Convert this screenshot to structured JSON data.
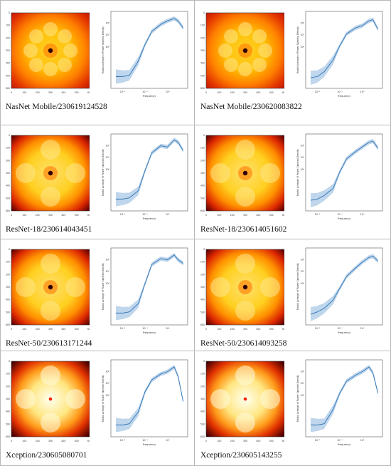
{
  "figure": {
    "psd_ylabel": "Radial Average of Power Spectral Density",
    "psd_xlabel": "Frequency",
    "heatmap_ticks": [
      "0",
      "100",
      "200",
      "300",
      "400",
      "500",
      "600"
    ],
    "psd_xticks": [
      "10⁻²",
      "10⁻¹",
      "10⁰"
    ],
    "psd_yticks": [
      "10⁸",
      "10⁷",
      "10⁶"
    ],
    "colors": {
      "line": "#2f74b5",
      "band": "#a9c8e6",
      "hot_outer": "#000000",
      "hot_mid": "#ff5500",
      "hot_core": "#ffffc8"
    },
    "panels": [
      {
        "caption": "NasNet Mobile/230619124528",
        "style": "nasnet"
      },
      {
        "caption": "NasNet Mobile/230620083822",
        "style": "nasnet"
      },
      {
        "caption": "ResNet-18/230614043451",
        "style": "resnet"
      },
      {
        "caption": "ResNet-18/230614051602",
        "style": "resnet"
      },
      {
        "caption": "ResNet-50/230613171244",
        "style": "resnet"
      },
      {
        "caption": "ResNet-50/230614093258",
        "style": "resnet"
      },
      {
        "caption": "Xception/230605080701",
        "style": "xception"
      },
      {
        "caption": "Xception/230605143255",
        "style": "xception"
      }
    ]
  },
  "chart_data": [
    {
      "type": "line",
      "title": "",
      "xlabel": "Frequency",
      "ylabel": "Radial Average of Power Spectral Density",
      "x_scale": "log",
      "y_scale": "log",
      "x": [
        0.005,
        0.01,
        0.02,
        0.05,
        0.1,
        0.2,
        0.5,
        1,
        2,
        3,
        5
      ],
      "series": [
        {
          "values": [
            3.5,
            3.5,
            3.6,
            4.8,
            6.2,
            7.3,
            7.9,
            8.2,
            8.4,
            8.2,
            7.6
          ]
        }
      ]
    },
    {
      "type": "line",
      "title": "",
      "xlabel": "Frequency",
      "ylabel": "Radial Average of Power Spectral Density",
      "x_scale": "log",
      "y_scale": "log",
      "x": [
        0.005,
        0.01,
        0.02,
        0.05,
        0.1,
        0.2,
        0.5,
        1,
        2,
        3,
        5
      ],
      "series": [
        {
          "values": [
            3.4,
            3.5,
            3.9,
            4.9,
            6.1,
            7.1,
            7.6,
            7.8,
            8.2,
            8.3,
            7.5
          ]
        }
      ]
    },
    {
      "type": "line",
      "title": "",
      "xlabel": "Frequency",
      "ylabel": "Radial Average of Power Spectral Density",
      "x_scale": "log",
      "y_scale": "log",
      "x": [
        0.005,
        0.01,
        0.02,
        0.05,
        0.1,
        0.2,
        0.5,
        1,
        2,
        3,
        5
      ],
      "series": [
        {
          "values": [
            3.5,
            3.5,
            3.6,
            4.2,
            5.9,
            7.4,
            8.0,
            7.9,
            8.5,
            8.3,
            7.6
          ]
        }
      ]
    },
    {
      "type": "line",
      "title": "",
      "xlabel": "Frequency",
      "ylabel": "Radial Average of Power Spectral Density",
      "x_scale": "log",
      "y_scale": "log",
      "x": [
        0.005,
        0.01,
        0.02,
        0.05,
        0.1,
        0.2,
        0.5,
        1,
        2,
        3,
        5
      ],
      "series": [
        {
          "values": [
            3.4,
            3.5,
            3.8,
            4.4,
            5.8,
            6.9,
            7.5,
            7.9,
            8.3,
            8.4,
            7.8
          ]
        }
      ]
    },
    {
      "type": "line",
      "title": "",
      "xlabel": "Frequency",
      "ylabel": "Radial Average of Power Spectral Density",
      "x_scale": "log",
      "y_scale": "log",
      "x": [
        0.005,
        0.01,
        0.02,
        0.05,
        0.1,
        0.2,
        0.5,
        1,
        2,
        3,
        5
      ],
      "series": [
        {
          "values": [
            3.5,
            3.5,
            3.6,
            4.3,
            6.0,
            7.6,
            8.1,
            8.0,
            8.4,
            8.0,
            7.7
          ]
        }
      ]
    },
    {
      "type": "line",
      "title": "",
      "xlabel": "Frequency",
      "ylabel": "Radial Average of Power Spectral Density",
      "x_scale": "log",
      "y_scale": "log",
      "x": [
        0.005,
        0.01,
        0.02,
        0.05,
        0.1,
        0.2,
        0.5,
        1,
        2,
        3,
        5
      ],
      "series": [
        {
          "values": [
            3.4,
            3.6,
            3.9,
            4.6,
            5.6,
            6.6,
            7.3,
            7.8,
            8.2,
            8.3,
            7.9
          ]
        }
      ]
    },
    {
      "type": "line",
      "title": "",
      "xlabel": "Frequency",
      "ylabel": "Radial Average of Power Spectral Density",
      "x_scale": "log",
      "y_scale": "log",
      "x": [
        0.005,
        0.01,
        0.02,
        0.05,
        0.1,
        0.2,
        0.5,
        1,
        2,
        3,
        5
      ],
      "series": [
        {
          "values": [
            3.5,
            3.5,
            3.6,
            4.6,
            6.3,
            7.3,
            7.8,
            8.0,
            8.4,
            7.6,
            5.5
          ]
        }
      ]
    },
    {
      "type": "line",
      "title": "",
      "xlabel": "Frequency",
      "ylabel": "Radial Average of Power Spectral Density",
      "x_scale": "log",
      "y_scale": "log",
      "x": [
        0.005,
        0.01,
        0.02,
        0.05,
        0.1,
        0.2,
        0.5,
        1,
        2,
        3,
        5
      ],
      "series": [
        {
          "values": [
            3.5,
            3.5,
            3.6,
            4.8,
            6.2,
            7.2,
            7.7,
            8.0,
            8.4,
            7.9,
            6.2
          ]
        }
      ]
    }
  ]
}
